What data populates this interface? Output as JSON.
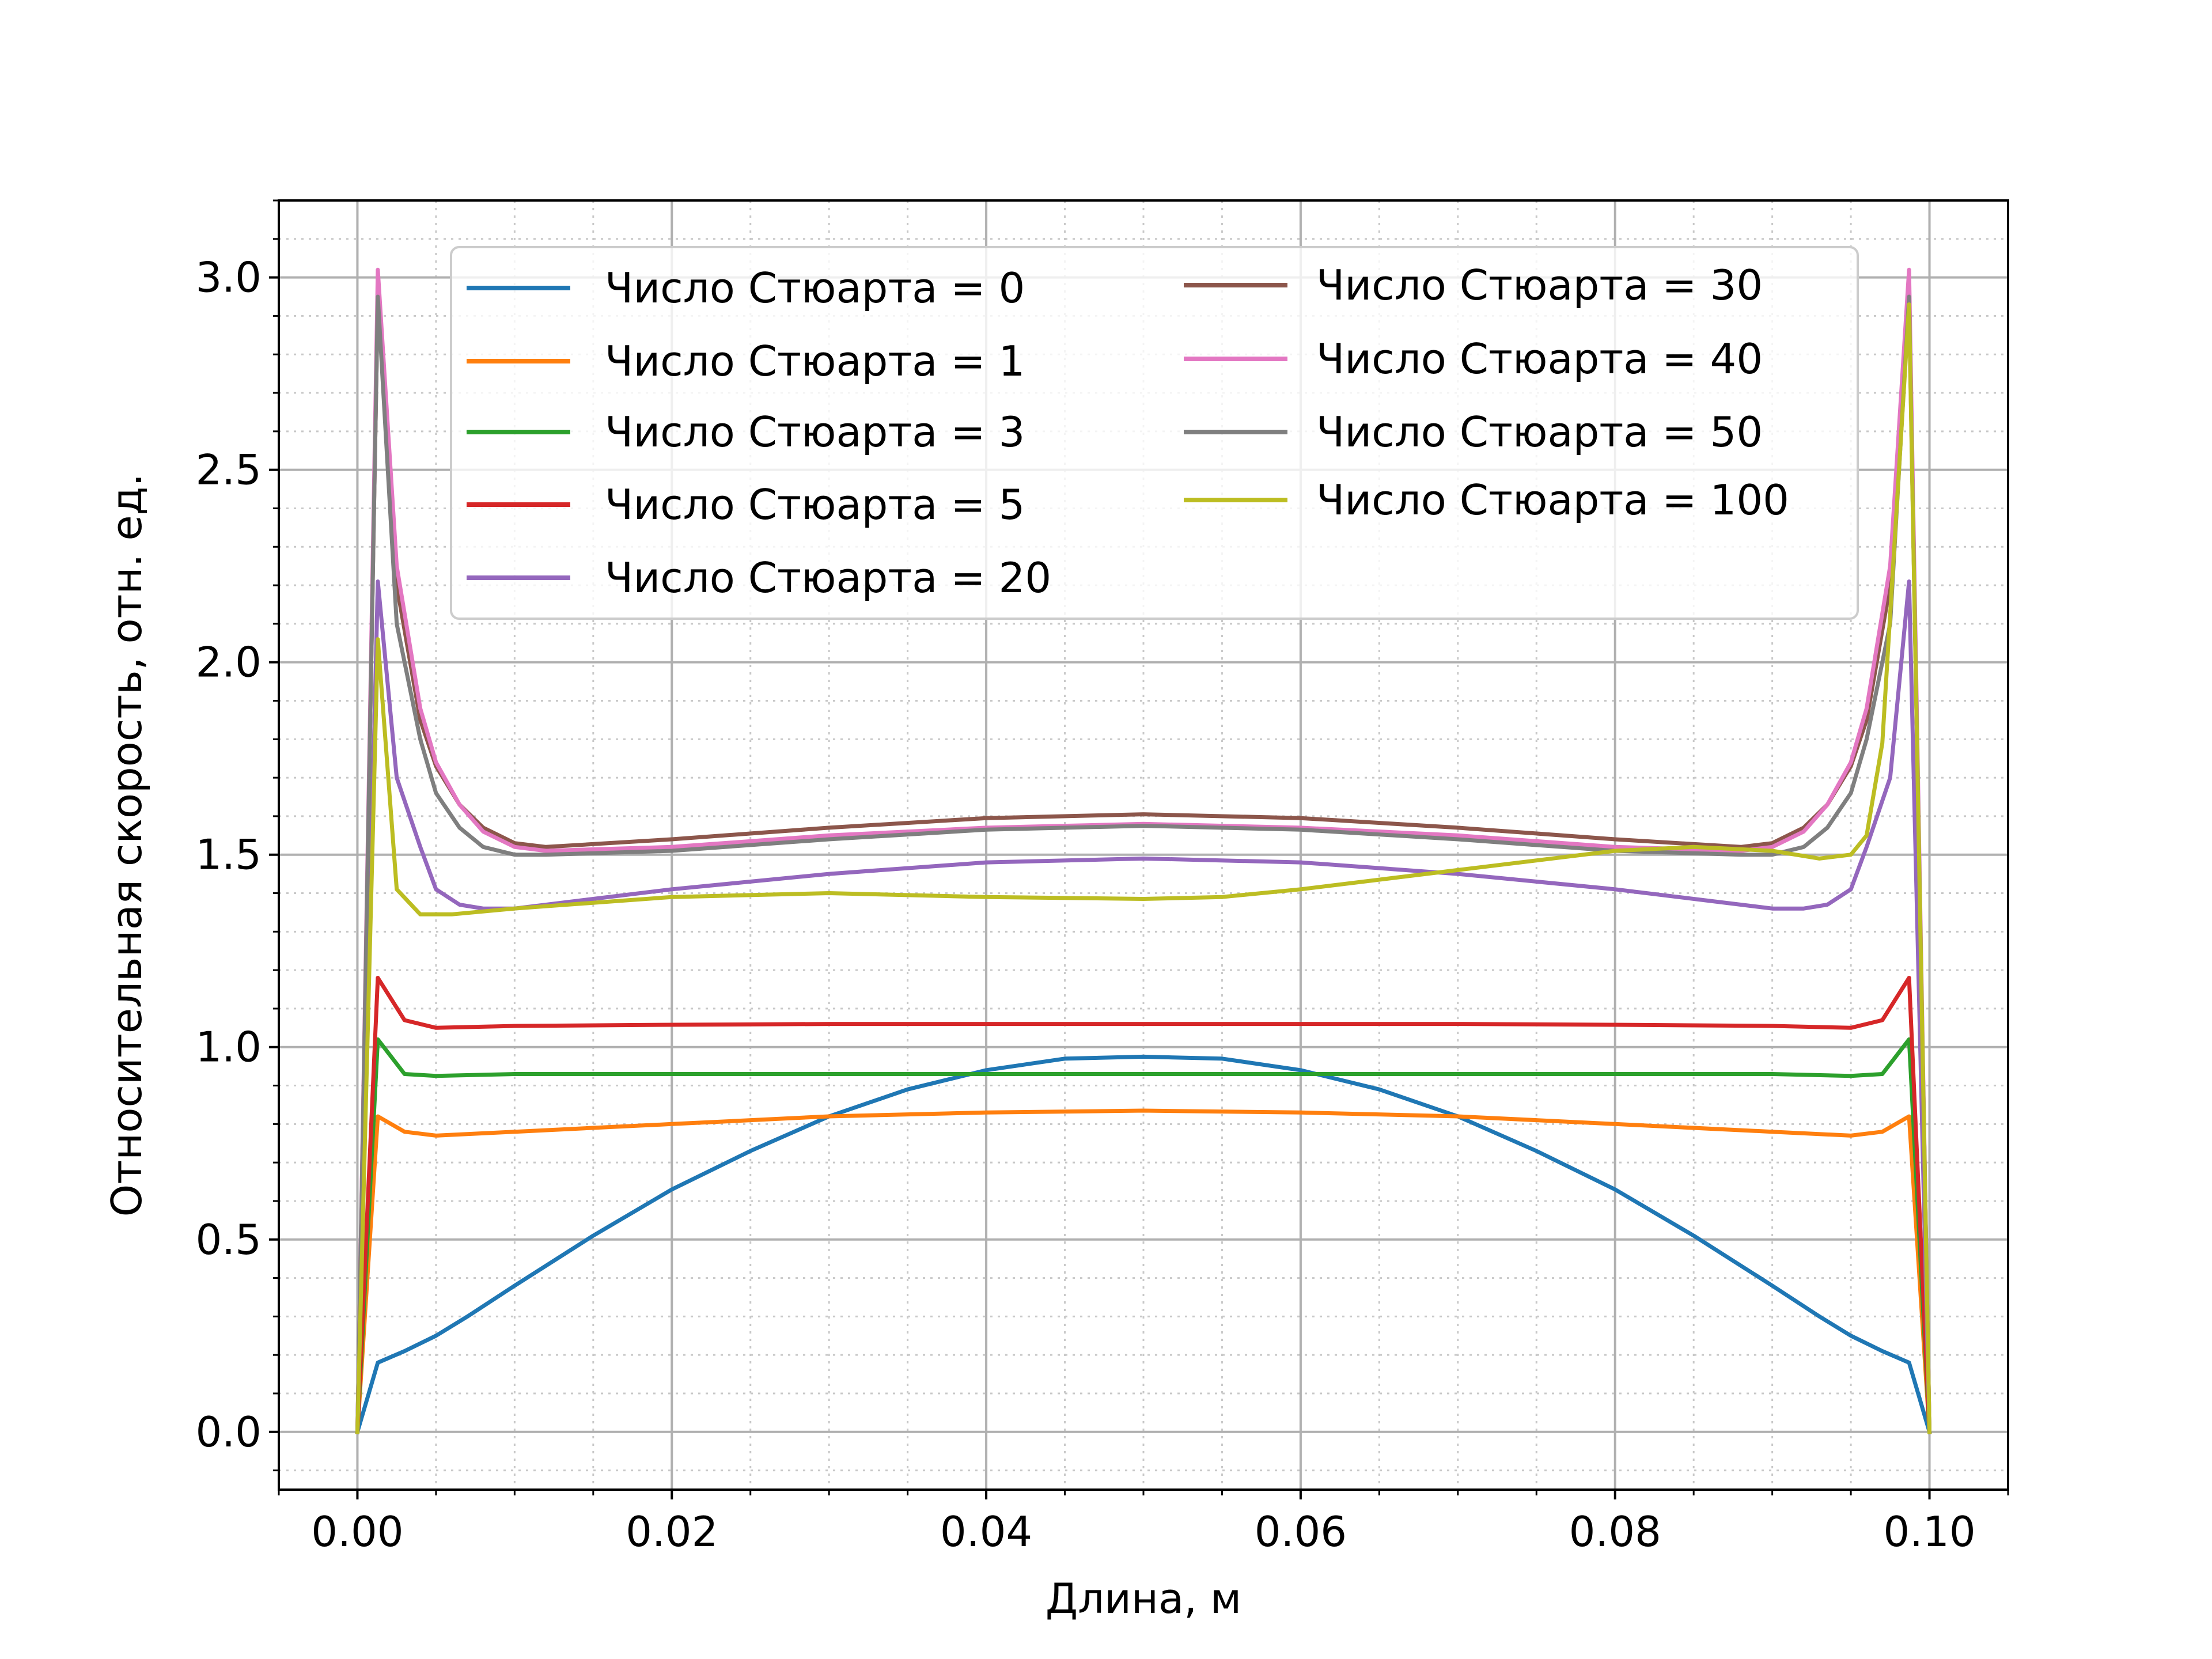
{
  "chart_data": {
    "type": "line",
    "title": "",
    "xlabel": "Длина, м",
    "ylabel": "Относительная скорость, отн. ед.",
    "xlim": [
      -0.005,
      0.105
    ],
    "ylim": [
      -0.15,
      3.2
    ],
    "x_ticks": [
      "0.00",
      "0.02",
      "0.04",
      "0.06",
      "0.08",
      "0.10"
    ],
    "y_ticks": [
      "0.0",
      "0.5",
      "1.0",
      "1.5",
      "2.0",
      "2.5",
      "3.0"
    ],
    "grid": "major and minor",
    "legend_position": "top (two columns)",
    "series": [
      {
        "name": "Число Стюарта = 0",
        "color": "#1f77b4",
        "x": [
          0,
          0.0013,
          0.003,
          0.005,
          0.007,
          0.01,
          0.015,
          0.02,
          0.025,
          0.03,
          0.035,
          0.04,
          0.045,
          0.05,
          0.055,
          0.06,
          0.065,
          0.07,
          0.075,
          0.08,
          0.085,
          0.09,
          0.093,
          0.095,
          0.097,
          0.0987,
          0.1
        ],
        "values": [
          0,
          0.18,
          0.21,
          0.25,
          0.3,
          0.38,
          0.51,
          0.63,
          0.73,
          0.82,
          0.89,
          0.94,
          0.97,
          0.975,
          0.97,
          0.94,
          0.89,
          0.82,
          0.73,
          0.63,
          0.51,
          0.38,
          0.3,
          0.25,
          0.21,
          0.18,
          0
        ]
      },
      {
        "name": "Число Стюарта = 1",
        "color": "#ff7f0e",
        "x": [
          0,
          0.0013,
          0.003,
          0.005,
          0.01,
          0.02,
          0.03,
          0.04,
          0.05,
          0.06,
          0.07,
          0.08,
          0.09,
          0.095,
          0.097,
          0.0987,
          0.1
        ],
        "values": [
          0,
          0.82,
          0.78,
          0.77,
          0.78,
          0.8,
          0.82,
          0.83,
          0.835,
          0.83,
          0.82,
          0.8,
          0.78,
          0.77,
          0.78,
          0.82,
          0
        ]
      },
      {
        "name": "Число Стюарта = 3",
        "color": "#2ca02c",
        "x": [
          0,
          0.0013,
          0.003,
          0.005,
          0.01,
          0.02,
          0.03,
          0.04,
          0.05,
          0.06,
          0.07,
          0.08,
          0.09,
          0.095,
          0.097,
          0.0987,
          0.1
        ],
        "values": [
          0,
          1.02,
          0.93,
          0.925,
          0.93,
          0.93,
          0.93,
          0.93,
          0.93,
          0.93,
          0.93,
          0.93,
          0.93,
          0.925,
          0.93,
          1.02,
          0
        ]
      },
      {
        "name": "Число Стюарта = 5",
        "color": "#d62728",
        "x": [
          0,
          0.0013,
          0.003,
          0.005,
          0.01,
          0.02,
          0.03,
          0.04,
          0.05,
          0.06,
          0.07,
          0.08,
          0.09,
          0.095,
          0.097,
          0.0987,
          0.1
        ],
        "values": [
          0,
          1.18,
          1.07,
          1.05,
          1.055,
          1.058,
          1.06,
          1.06,
          1.06,
          1.06,
          1.06,
          1.058,
          1.055,
          1.05,
          1.07,
          1.18,
          0
        ]
      },
      {
        "name": "Число Стюарта = 20",
        "color": "#9467bd",
        "x": [
          0,
          0.0013,
          0.0025,
          0.004,
          0.005,
          0.0065,
          0.008,
          0.01,
          0.02,
          0.03,
          0.04,
          0.05,
          0.06,
          0.07,
          0.08,
          0.09,
          0.092,
          0.0935,
          0.095,
          0.096,
          0.0975,
          0.0987,
          0.1
        ],
        "values": [
          0,
          2.21,
          1.7,
          1.52,
          1.41,
          1.37,
          1.36,
          1.36,
          1.41,
          1.45,
          1.48,
          1.49,
          1.48,
          1.45,
          1.41,
          1.36,
          1.36,
          1.37,
          1.41,
          1.52,
          1.7,
          2.21,
          0
        ]
      },
      {
        "name": "Число Стюарта = 30",
        "color": "#8c564b",
        "x": [
          0,
          0.0013,
          0.0025,
          0.004,
          0.005,
          0.0065,
          0.008,
          0.01,
          0.012,
          0.02,
          0.03,
          0.04,
          0.05,
          0.06,
          0.07,
          0.08,
          0.088,
          0.09,
          0.092,
          0.0935,
          0.095,
          0.096,
          0.0975,
          0.0987,
          0.1
        ],
        "values": [
          0,
          2.95,
          2.2,
          1.85,
          1.73,
          1.63,
          1.57,
          1.53,
          1.52,
          1.54,
          1.57,
          1.595,
          1.605,
          1.595,
          1.57,
          1.54,
          1.52,
          1.53,
          1.57,
          1.63,
          1.73,
          1.85,
          2.2,
          2.95,
          0
        ]
      },
      {
        "name": "Число Стюарта = 40",
        "color": "#e377c2",
        "x": [
          0,
          0.0013,
          0.0025,
          0.004,
          0.005,
          0.0065,
          0.008,
          0.01,
          0.012,
          0.02,
          0.03,
          0.04,
          0.05,
          0.06,
          0.07,
          0.08,
          0.088,
          0.09,
          0.092,
          0.0935,
          0.095,
          0.096,
          0.0975,
          0.0987,
          0.1
        ],
        "values": [
          0,
          3.02,
          2.25,
          1.88,
          1.74,
          1.63,
          1.56,
          1.52,
          1.51,
          1.52,
          1.55,
          1.57,
          1.58,
          1.57,
          1.55,
          1.52,
          1.51,
          1.52,
          1.56,
          1.63,
          1.74,
          1.88,
          2.25,
          3.02,
          0
        ]
      },
      {
        "name": "Число Стюарта = 50",
        "color": "#7f7f7f",
        "x": [
          0,
          0.0013,
          0.0025,
          0.004,
          0.005,
          0.0065,
          0.008,
          0.01,
          0.012,
          0.02,
          0.03,
          0.04,
          0.05,
          0.06,
          0.07,
          0.08,
          0.088,
          0.09,
          0.092,
          0.0935,
          0.095,
          0.096,
          0.0975,
          0.0987,
          0.1
        ],
        "values": [
          0,
          2.95,
          2.1,
          1.8,
          1.66,
          1.57,
          1.52,
          1.5,
          1.5,
          1.51,
          1.54,
          1.565,
          1.575,
          1.565,
          1.54,
          1.51,
          1.5,
          1.5,
          1.52,
          1.57,
          1.66,
          1.8,
          2.1,
          2.95,
          0
        ]
      },
      {
        "name": "Число Стюарта = 100",
        "color": "#bcbd22",
        "x": [
          0,
          0.0013,
          0.0025,
          0.004,
          0.006,
          0.01,
          0.02,
          0.03,
          0.04,
          0.05,
          0.055,
          0.06,
          0.07,
          0.08,
          0.085,
          0.09,
          0.093,
          0.095,
          0.096,
          0.097,
          0.0987,
          0.1
        ],
        "values": [
          0,
          2.06,
          1.41,
          1.345,
          1.345,
          1.36,
          1.39,
          1.4,
          1.39,
          1.385,
          1.39,
          1.41,
          1.46,
          1.51,
          1.52,
          1.51,
          1.49,
          1.5,
          1.55,
          1.79,
          2.93,
          0
        ]
      }
    ]
  }
}
